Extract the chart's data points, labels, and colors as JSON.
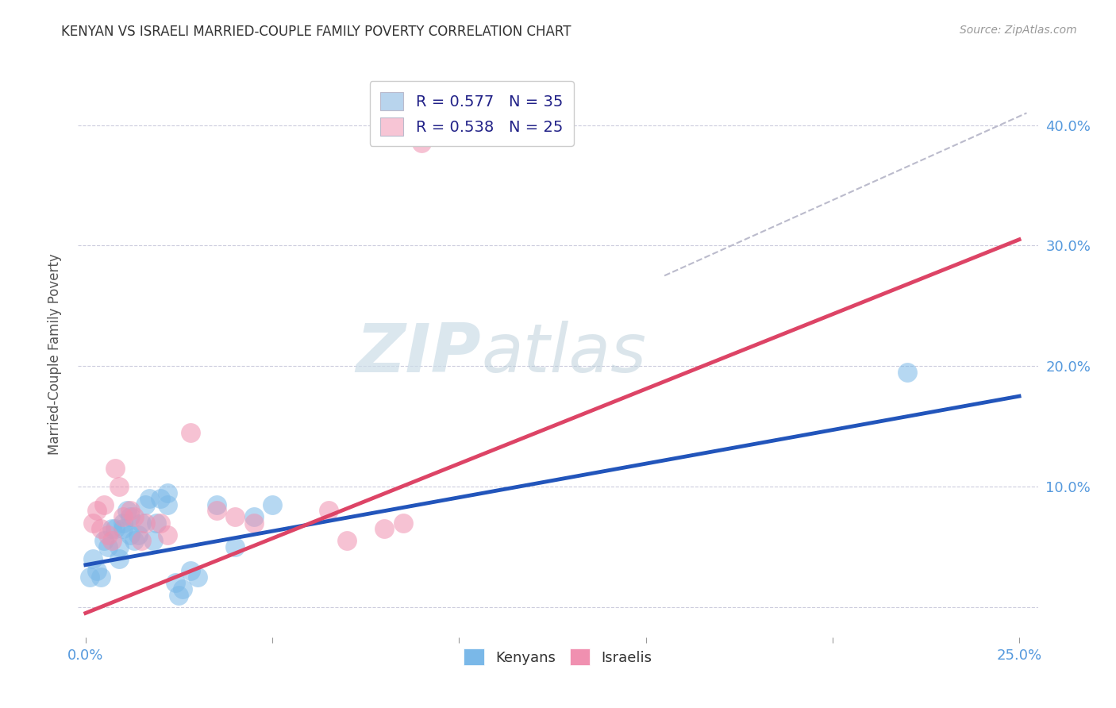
{
  "title": "KENYAN VS ISRAELI MARRIED-COUPLE FAMILY POVERTY CORRELATION CHART",
  "source": "Source: ZipAtlas.com",
  "ylabel_label": "Married-Couple Family Poverty",
  "xlim": [
    -0.002,
    0.255
  ],
  "ylim": [
    -0.025,
    0.445
  ],
  "xticks": [
    0.0,
    0.05,
    0.1,
    0.15,
    0.2,
    0.25
  ],
  "yticks": [
    0.0,
    0.1,
    0.2,
    0.3,
    0.4
  ],
  "xticklabels": [
    "0.0%",
    "",
    "",
    "",
    "",
    "25.0%"
  ],
  "yticklabels_right": [
    "",
    "10.0%",
    "20.0%",
    "30.0%",
    "40.0%"
  ],
  "watermark_zip": "ZIP",
  "watermark_atlas": "atlas",
  "legend_items": [
    {
      "label": "R = 0.577   N = 35",
      "color": "#b8d4ed"
    },
    {
      "label": "R = 0.538   N = 25",
      "color": "#f7c5d5"
    }
  ],
  "kenyan_color": "#7ab8e8",
  "israeli_color": "#f090b0",
  "kenyan_line_color": "#2255bb",
  "israeli_line_color": "#dd4466",
  "ref_line_color": "#bbbbcc",
  "kenyan_scatter": [
    [
      0.001,
      0.025
    ],
    [
      0.002,
      0.04
    ],
    [
      0.003,
      0.03
    ],
    [
      0.004,
      0.025
    ],
    [
      0.005,
      0.055
    ],
    [
      0.006,
      0.05
    ],
    [
      0.007,
      0.065
    ],
    [
      0.008,
      0.065
    ],
    [
      0.009,
      0.04
    ],
    [
      0.009,
      0.05
    ],
    [
      0.01,
      0.07
    ],
    [
      0.01,
      0.065
    ],
    [
      0.011,
      0.08
    ],
    [
      0.012,
      0.06
    ],
    [
      0.012,
      0.075
    ],
    [
      0.013,
      0.055
    ],
    [
      0.014,
      0.06
    ],
    [
      0.015,
      0.07
    ],
    [
      0.016,
      0.085
    ],
    [
      0.017,
      0.09
    ],
    [
      0.018,
      0.055
    ],
    [
      0.019,
      0.07
    ],
    [
      0.02,
      0.09
    ],
    [
      0.022,
      0.095
    ],
    [
      0.022,
      0.085
    ],
    [
      0.024,
      0.02
    ],
    [
      0.025,
      0.01
    ],
    [
      0.026,
      0.015
    ],
    [
      0.028,
      0.03
    ],
    [
      0.03,
      0.025
    ],
    [
      0.035,
      0.085
    ],
    [
      0.04,
      0.05
    ],
    [
      0.045,
      0.075
    ],
    [
      0.05,
      0.085
    ],
    [
      0.22,
      0.195
    ]
  ],
  "israeli_scatter": [
    [
      0.002,
      0.07
    ],
    [
      0.003,
      0.08
    ],
    [
      0.004,
      0.065
    ],
    [
      0.005,
      0.085
    ],
    [
      0.006,
      0.06
    ],
    [
      0.007,
      0.055
    ],
    [
      0.008,
      0.115
    ],
    [
      0.009,
      0.1
    ],
    [
      0.01,
      0.075
    ],
    [
      0.012,
      0.08
    ],
    [
      0.013,
      0.075
    ],
    [
      0.015,
      0.055
    ],
    [
      0.016,
      0.07
    ],
    [
      0.02,
      0.07
    ],
    [
      0.022,
      0.06
    ],
    [
      0.028,
      0.145
    ],
    [
      0.035,
      0.08
    ],
    [
      0.04,
      0.075
    ],
    [
      0.045,
      0.07
    ],
    [
      0.065,
      0.08
    ],
    [
      0.07,
      0.055
    ],
    [
      0.08,
      0.065
    ],
    [
      0.085,
      0.07
    ],
    [
      0.09,
      0.385
    ],
    [
      0.12,
      0.4
    ]
  ],
  "kenyan_line": {
    "x0": 0.0,
    "x1": 0.25,
    "y0": 0.035,
    "y1": 0.175
  },
  "israeli_line": {
    "x0": 0.0,
    "x1": 0.25,
    "y0": -0.005,
    "y1": 0.305
  },
  "ref_line": {
    "x0": 0.155,
    "x1": 0.252,
    "y0": 0.275,
    "y1": 0.41
  }
}
